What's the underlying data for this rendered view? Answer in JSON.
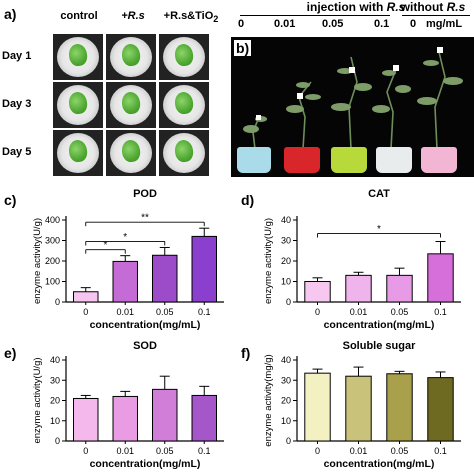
{
  "panel_labels": {
    "a": "a)",
    "b": "b)",
    "c": "c)",
    "d": "d)",
    "e": "e)",
    "f": "f)"
  },
  "panel_a": {
    "columns": [
      "control",
      "+R.s",
      "+R.s&TiO2"
    ],
    "rows": [
      "Day 1",
      "Day 3",
      "Day 5"
    ]
  },
  "panel_b": {
    "group_injection": "injection with R.s",
    "group_without": "without R.s",
    "concentrations": [
      "0",
      "0.01",
      "0.05",
      "0.1",
      "0"
    ],
    "unit": "mg/mL",
    "pot_colors": [
      "#a9dbe8",
      "#d8262b",
      "#b8d93a",
      "#e8ecec",
      "#f2b6d4"
    ]
  },
  "chart_data": [
    {
      "type": "bar",
      "title": "POD",
      "xlabel": "concentration(mg/mL)",
      "ylabel": "enzyme activity(U/g)",
      "categories": [
        "0",
        "0.01",
        "0.05",
        "0.1"
      ],
      "values": [
        50,
        198,
        228,
        320
      ],
      "errors": [
        20,
        28,
        38,
        40
      ],
      "ylim": [
        0,
        400
      ],
      "yticks": [
        0,
        100,
        200,
        300,
        400
      ],
      "colors": [
        "#f7c6f0",
        "#c56bd6",
        "#9c4cc8",
        "#8a3fcf"
      ],
      "significance": [
        {
          "from": 0,
          "to": 1,
          "label": "*"
        },
        {
          "from": 0,
          "to": 2,
          "label": "*"
        },
        {
          "from": 0,
          "to": 3,
          "label": "**"
        }
      ]
    },
    {
      "type": "bar",
      "title": "CAT",
      "xlabel": "concentration(mg/mL)",
      "ylabel": "enzyme activity(U/g)",
      "categories": [
        "0",
        "0.01",
        "0.05",
        "0.1"
      ],
      "values": [
        10,
        13,
        13,
        23.5
      ],
      "errors": [
        1.8,
        1.5,
        3.5,
        6
      ],
      "ylim": [
        0,
        40
      ],
      "yticks": [
        0,
        10,
        20,
        30,
        40
      ],
      "colors": [
        "#f6c8f0",
        "#efb4ec",
        "#e79ae6",
        "#d66fd9"
      ],
      "significance": [
        {
          "from": 0,
          "to": 3,
          "label": "*"
        }
      ]
    },
    {
      "type": "bar",
      "title": "SOD",
      "xlabel": "concentration(mg/mL)",
      "ylabel": "enzyme activity(U/g)",
      "categories": [
        "0",
        "0.01",
        "0.05",
        "0.1"
      ],
      "values": [
        21,
        22,
        25.5,
        22.5
      ],
      "errors": [
        1.5,
        2.5,
        6.5,
        4.5
      ],
      "ylim": [
        0,
        40
      ],
      "yticks": [
        0,
        10,
        20,
        30,
        40
      ],
      "colors": [
        "#f4b8ec",
        "#e99be4",
        "#d07ed8",
        "#a556c8"
      ],
      "significance": []
    },
    {
      "type": "bar",
      "title": "Soluble sugar",
      "xlabel": "concentration(mg/mL)",
      "ylabel": "enzyme activity(mg/g)",
      "categories": [
        "0",
        "0.01",
        "0.05",
        "0.1"
      ],
      "values": [
        33.5,
        32,
        33.2,
        31.3
      ],
      "errors": [
        2,
        4.5,
        1.2,
        2.8
      ],
      "ylim": [
        0,
        40
      ],
      "yticks": [
        0,
        10,
        20,
        30,
        40
      ],
      "colors": [
        "#f3f0c2",
        "#c9c27a",
        "#a8a04a",
        "#6e6a22"
      ],
      "significance": []
    }
  ]
}
